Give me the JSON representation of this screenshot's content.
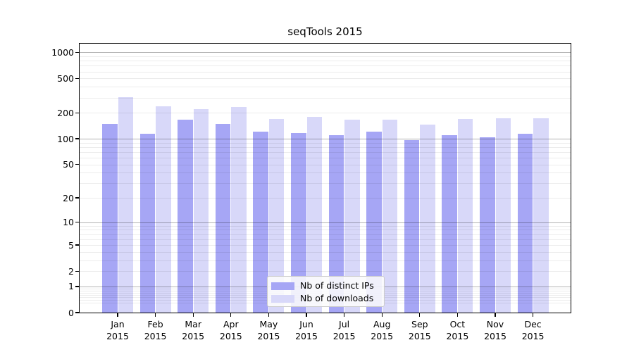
{
  "title": "seqTools 2015",
  "colors": {
    "ips": "#a6a6f5",
    "downloads": "#d8d8f9",
    "grid_major": "#adadad",
    "grid_minor": "#ebebeb"
  },
  "legend": {
    "items": [
      {
        "label": "Nb of distinct IPs",
        "series": "ips"
      },
      {
        "label": "Nb of downloads",
        "series": "downloads"
      }
    ]
  },
  "x_axis": {
    "year": "2015",
    "months": [
      "Jan",
      "Feb",
      "Mar",
      "Apr",
      "May",
      "Jun",
      "Jul",
      "Aug",
      "Sep",
      "Oct",
      "Nov",
      "Dec"
    ]
  },
  "y_axis": {
    "ticks": [
      {
        "value": 1000,
        "label": "1000"
      },
      {
        "value": 500,
        "label": "500"
      },
      {
        "value": 200,
        "label": "200"
      },
      {
        "value": 100,
        "label": "100"
      },
      {
        "value": 50,
        "label": "50"
      },
      {
        "value": 20,
        "label": "20"
      },
      {
        "value": 10,
        "label": "10"
      },
      {
        "value": 5,
        "label": "5"
      },
      {
        "value": 2,
        "label": "2"
      },
      {
        "value": 1,
        "label": "1"
      },
      {
        "value": 0,
        "label": "0"
      }
    ]
  },
  "chart_data": {
    "type": "bar",
    "title": "seqTools 2015",
    "categories": [
      "Jan 2015",
      "Feb 2015",
      "Mar 2015",
      "Apr 2015",
      "May 2015",
      "Jun 2015",
      "Jul 2015",
      "Aug 2015",
      "Sep 2015",
      "Oct 2015",
      "Nov 2015",
      "Dec 2015"
    ],
    "series": [
      {
        "name": "Nb of distinct IPs",
        "color": "#a6a6f5",
        "values": [
          148,
          114,
          165,
          148,
          122,
          117,
          111,
          122,
          97,
          110,
          104,
          115
        ]
      },
      {
        "name": "Nb of downloads",
        "color": "#d8d8f9",
        "values": [
          305,
          240,
          222,
          235,
          170,
          178,
          165,
          167,
          145,
          170,
          174,
          172
        ]
      }
    ],
    "xlabel": "",
    "ylabel": "",
    "yscale": "log1p",
    "ylim": [
      0,
      1280
    ],
    "y_ticks": [
      0,
      1,
      2,
      5,
      10,
      20,
      50,
      100,
      200,
      500,
      1000
    ],
    "grid": "on",
    "legend_position": "lower center"
  }
}
